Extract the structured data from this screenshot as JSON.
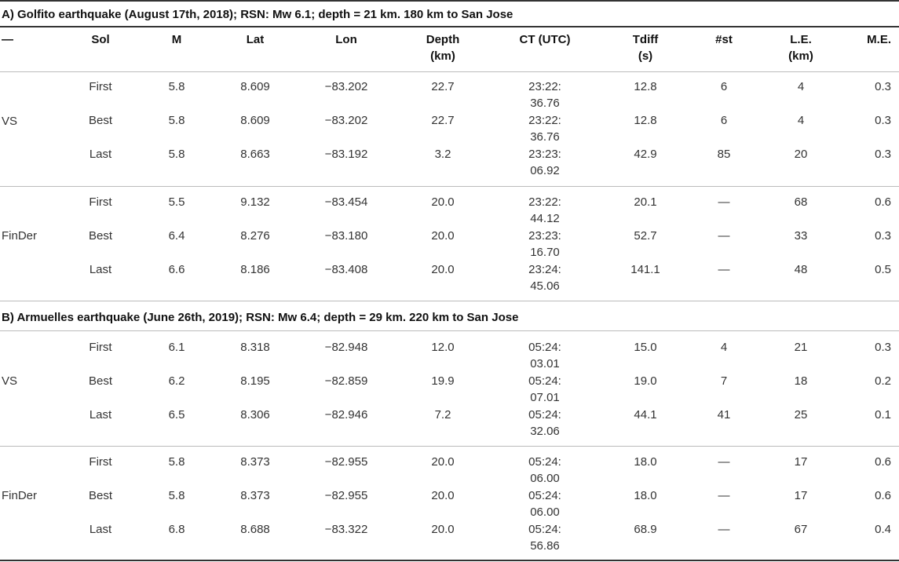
{
  "table": {
    "headers": [
      {
        "key": "group",
        "text": "—"
      },
      {
        "key": "sol",
        "text": "Sol"
      },
      {
        "key": "m",
        "text": "M"
      },
      {
        "key": "lat",
        "text": "Lat"
      },
      {
        "key": "lon",
        "text": "Lon"
      },
      {
        "key": "depth",
        "text": "Depth\n(km)"
      },
      {
        "key": "ct",
        "text": "CT (UTC)"
      },
      {
        "key": "tdiff",
        "text": "Tdiff\n(s)"
      },
      {
        "key": "st",
        "text": "#st"
      },
      {
        "key": "le",
        "text": "L.E.\n(km)"
      },
      {
        "key": "me",
        "text": "M.E."
      }
    ],
    "sections": [
      {
        "title": "A) Golfito earthquake (August 17th, 2018); RSN: Mw 6.1; depth = 21 km. 180 km to San Jose",
        "groups": [
          {
            "label": "VS",
            "rows": [
              {
                "sol": "First",
                "m": "5.8",
                "lat": "8.609",
                "lon": "−83.202",
                "depth": "22.7",
                "ct": "23:22:\n36.76",
                "tdiff": "12.8",
                "st": "6",
                "le": "4",
                "me": "0.3"
              },
              {
                "sol": "Best",
                "m": "5.8",
                "lat": "8.609",
                "lon": "−83.202",
                "depth": "22.7",
                "ct": "23:22:\n36.76",
                "tdiff": "12.8",
                "st": "6",
                "le": "4",
                "me": "0.3"
              },
              {
                "sol": "Last",
                "m": "5.8",
                "lat": "8.663",
                "lon": "−83.192",
                "depth": "3.2",
                "ct": "23:23:\n06.92",
                "tdiff": "42.9",
                "st": "85",
                "le": "20",
                "me": "0.3"
              }
            ]
          },
          {
            "label": "FinDer",
            "rows": [
              {
                "sol": "First",
                "m": "5.5",
                "lat": "9.132",
                "lon": "−83.454",
                "depth": "20.0",
                "ct": "23:22:\n44.12",
                "tdiff": "20.1",
                "st": "—",
                "le": "68",
                "me": "0.6"
              },
              {
                "sol": "Best",
                "m": "6.4",
                "lat": "8.276",
                "lon": "−83.180",
                "depth": "20.0",
                "ct": "23:23:\n16.70",
                "tdiff": "52.7",
                "st": "—",
                "le": "33",
                "me": "0.3"
              },
              {
                "sol": "Last",
                "m": "6.6",
                "lat": "8.186",
                "lon": "−83.408",
                "depth": "20.0",
                "ct": "23:24:\n45.06",
                "tdiff": "141.1",
                "st": "—",
                "le": "48",
                "me": "0.5"
              }
            ]
          }
        ]
      },
      {
        "title": "B) Armuelles earthquake (June 26th, 2019); RSN: Mw 6.4; depth = 29 km. 220 km to San Jose",
        "groups": [
          {
            "label": "VS",
            "rows": [
              {
                "sol": "First",
                "m": "6.1",
                "lat": "8.318",
                "lon": "−82.948",
                "depth": "12.0",
                "ct": "05:24:\n03.01",
                "tdiff": "15.0",
                "st": "4",
                "le": "21",
                "me": "0.3"
              },
              {
                "sol": "Best",
                "m": "6.2",
                "lat": "8.195",
                "lon": "−82.859",
                "depth": "19.9",
                "ct": "05:24:\n07.01",
                "tdiff": "19.0",
                "st": "7",
                "le": "18",
                "me": "0.2"
              },
              {
                "sol": "Last",
                "m": "6.5",
                "lat": "8.306",
                "lon": "−82.946",
                "depth": "7.2",
                "ct": "05:24:\n32.06",
                "tdiff": "44.1",
                "st": "41",
                "le": "25",
                "me": "0.1"
              }
            ]
          },
          {
            "label": "FinDer",
            "rows": [
              {
                "sol": "First",
                "m": "5.8",
                "lat": "8.373",
                "lon": "−82.955",
                "depth": "20.0",
                "ct": "05:24:\n06.00",
                "tdiff": "18.0",
                "st": "—",
                "le": "17",
                "me": "0.6"
              },
              {
                "sol": "Best",
                "m": "5.8",
                "lat": "8.373",
                "lon": "−82.955",
                "depth": "20.0",
                "ct": "05:24:\n06.00",
                "tdiff": "18.0",
                "st": "—",
                "le": "17",
                "me": "0.6"
              },
              {
                "sol": "Last",
                "m": "6.8",
                "lat": "8.688",
                "lon": "−83.322",
                "depth": "20.0",
                "ct": "05:24:\n56.86",
                "tdiff": "68.9",
                "st": "—",
                "le": "67",
                "me": "0.4"
              }
            ]
          }
        ]
      }
    ]
  }
}
